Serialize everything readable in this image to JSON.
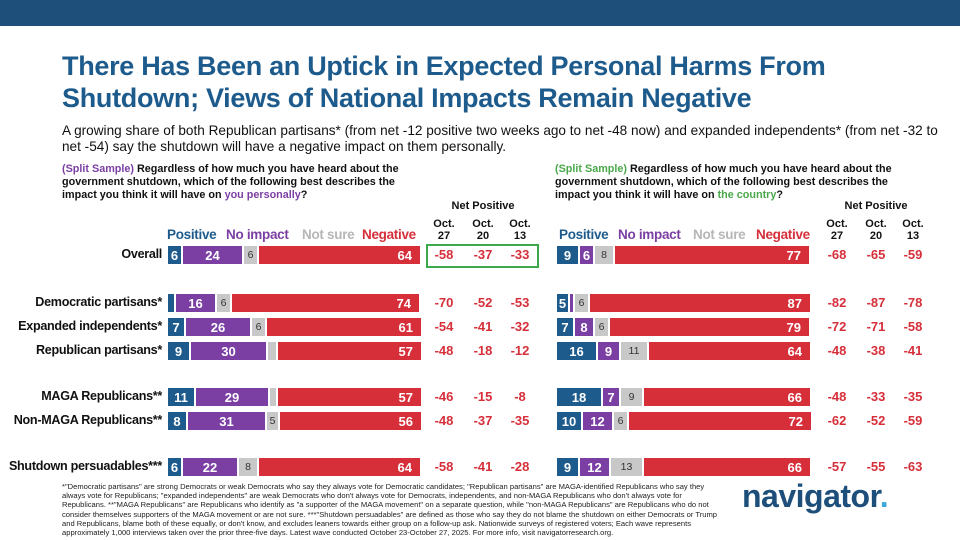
{
  "title": "There Has Been an Uptick in Expected Personal Harms From Shutdown; Views of National Impacts Remain Negative",
  "subtitle": "A growing share of both Republican partisans* (from net -12 positive two weeks ago to net -48 now) and expanded independents* (from net -32 to net -54) say the shutdown will have a negative impact on them personally.",
  "left_question": {
    "split_label": "(Split Sample)",
    "text": " Regardless of how much you have heard about the government shutdown, which of the following best describes the impact you think it will have on ",
    "target": "you personally",
    "end": "?"
  },
  "right_question": {
    "split_label": "(Split Sample)",
    "text": " Regardless of how much you have heard about the government shutdown, which of the following best describes the impact you think it will have on ",
    "target": "the country",
    "end": "?"
  },
  "legend": {
    "positive": "Positive",
    "no_impact": "No impact",
    "not_sure": "Not sure",
    "negative": "Negative"
  },
  "net_positive_label": "Net Positive",
  "waves": [
    {
      "month": "Oct.",
      "day": "27"
    },
    {
      "month": "Oct.",
      "day": "20"
    },
    {
      "month": "Oct.",
      "day": "13"
    }
  ],
  "colors": {
    "positive": "#1d5b8c",
    "no_impact": "#7b3fa3",
    "not_sure": "#c8c8c8",
    "negative": "#d62f3a",
    "highlight": "#3ba84a"
  },
  "chart_data": [
    {
      "type": "bar",
      "title": "Impact on you personally",
      "categories": [
        "Overall",
        "Democratic partisans*",
        "Expanded independents*",
        "Republican partisans*",
        "MAGA Republicans**",
        "Non-MAGA Republicans**",
        "Shutdown persuadables***"
      ],
      "series": [
        {
          "name": "Positive",
          "values": [
            6,
            3,
            7,
            9,
            11,
            8,
            6
          ],
          "labels": [
            "6",
            "",
            "7",
            "9",
            "11",
            "8",
            "6"
          ]
        },
        {
          "name": "No impact",
          "values": [
            24,
            16,
            26,
            30,
            29,
            31,
            22
          ],
          "labels": [
            "24",
            "16",
            "26",
            "30",
            "29",
            "31",
            "22"
          ]
        },
        {
          "name": "Not sure",
          "values": [
            6,
            6,
            6,
            4,
            3,
            5,
            8
          ],
          "labels": [
            "6",
            "6",
            "6",
            "",
            "",
            "5",
            "8"
          ]
        },
        {
          "name": "Negative",
          "values": [
            64,
            74,
            61,
            57,
            57,
            56,
            64
          ],
          "labels": [
            "64",
            "74",
            "61",
            "57",
            "57",
            "56",
            "64"
          ]
        }
      ],
      "net_positive": [
        [
          "-58",
          "-37",
          "-33"
        ],
        [
          "-70",
          "-52",
          "-53"
        ],
        [
          "-54",
          "-41",
          "-32"
        ],
        [
          "-48",
          "-18",
          "-12"
        ],
        [
          "-46",
          "-15",
          "-8"
        ],
        [
          "-48",
          "-37",
          "-35"
        ],
        [
          "-58",
          "-41",
          "-28"
        ]
      ]
    },
    {
      "type": "bar",
      "title": "Impact on the country",
      "categories": [
        "Overall",
        "Democratic partisans*",
        "Expanded independents*",
        "Republican partisans*",
        "MAGA Republicans**",
        "Non-MAGA Republicans**",
        "Shutdown persuadables***"
      ],
      "series": [
        {
          "name": "Positive",
          "values": [
            9,
            5,
            7,
            16,
            18,
            10,
            9
          ],
          "labels": [
            "9",
            "5",
            "7",
            "16",
            "18",
            "10",
            "9"
          ]
        },
        {
          "name": "No impact",
          "values": [
            6,
            2,
            8,
            9,
            7,
            12,
            12
          ],
          "labels": [
            "6",
            "",
            "8",
            "9",
            "7",
            "12",
            "12"
          ]
        },
        {
          "name": "Not sure",
          "values": [
            8,
            6,
            6,
            11,
            9,
            6,
            13
          ],
          "labels": [
            "8",
            "6",
            "6",
            "11",
            "9",
            "6",
            "13"
          ]
        },
        {
          "name": "Negative",
          "values": [
            77,
            87,
            79,
            64,
            66,
            72,
            66
          ],
          "labels": [
            "77",
            "87",
            "79",
            "64",
            "66",
            "72",
            "66"
          ]
        }
      ],
      "net_positive": [
        [
          "-68",
          "-65",
          "-59"
        ],
        [
          "-82",
          "-87",
          "-78"
        ],
        [
          "-72",
          "-71",
          "-58"
        ],
        [
          "-48",
          "-38",
          "-41"
        ],
        [
          "-48",
          "-33",
          "-35"
        ],
        [
          "-62",
          "-52",
          "-59"
        ],
        [
          "-57",
          "-55",
          "-63"
        ]
      ]
    }
  ],
  "footnote": "*\"Democratic partisans\" are strong Democrats or weak Democrats who say they always vote for Democratic candidates; \"Republican partisans\" are MAGA-identified Republicans who say they always vote for Republicans; \"expanded independents\" are weak Democrats who don't always vote for Democrats, independents, and non-MAGA Republicans who don't always vote for Republicans. **\"MAGA Republicans\" are Republicans who identify as \"a supporter of the MAGA movement\" on a separate question, while \"non-MAGA Republicans\" are Republicans who do not consider themselves supporters of the MAGA movement or are not sure. ***\"Shutdown persuadables\" are defined as those who say they do not blame the shutdown on either Democrats or Trump and Republicans, blame both of these equally, or don't know, and excludes leaners towards either group on a follow-up ask. Nationwide surveys of registered voters; Each wave represents approximately 1,000 interviews taken over the prior three-five days. Latest wave conducted October 23-October 27, 2025. For more info, visit navigatorresearch.org.",
  "logo": {
    "text": "navigator",
    "dot": "."
  }
}
